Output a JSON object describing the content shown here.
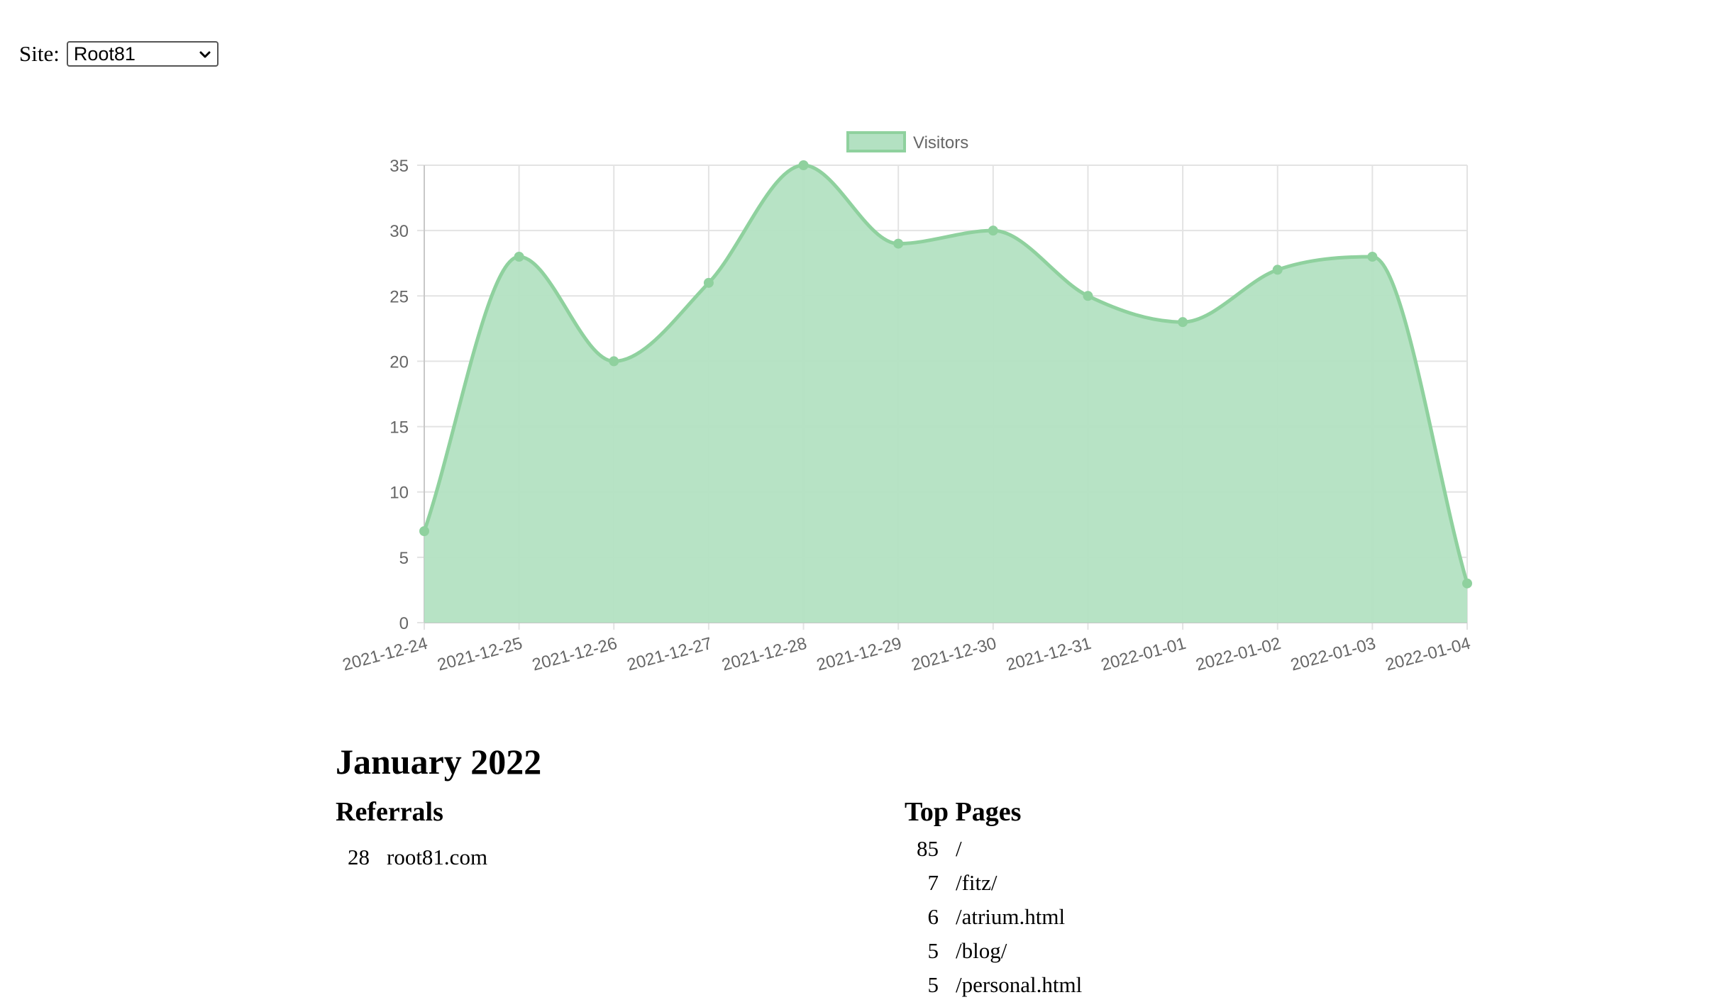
{
  "site": {
    "label": "Site:",
    "selected": "Root81"
  },
  "chart_data": {
    "type": "area",
    "legend": [
      "Visitors"
    ],
    "legend_position": "top-center",
    "x": [
      "2021-12-24",
      "2021-12-25",
      "2021-12-26",
      "2021-12-27",
      "2021-12-28",
      "2021-12-29",
      "2021-12-30",
      "2021-12-31",
      "2022-01-01",
      "2022-01-02",
      "2022-01-03",
      "2022-01-04"
    ],
    "series": [
      {
        "name": "Visitors",
        "values": [
          7,
          28,
          20,
          26,
          35,
          29,
          30,
          25,
          23,
          27,
          28,
          3
        ],
        "color": "#8fd19e"
      }
    ],
    "yticks": [
      "0",
      "5",
      "10",
      "15",
      "20",
      "25",
      "30",
      "35"
    ],
    "ylim": [
      0,
      35
    ],
    "grid": true,
    "fill_color": "#b3e1c2",
    "line_color": "#8fd19e"
  },
  "report": {
    "month": "January 2022",
    "referrals": {
      "title": "Referrals",
      "items": [
        {
          "count": "28",
          "label": "root81.com"
        }
      ]
    },
    "top_pages": {
      "title": "Top Pages",
      "items": [
        {
          "count": "85",
          "label": "/"
        },
        {
          "count": "7",
          "label": "/fitz/"
        },
        {
          "count": "6",
          "label": "/atrium.html"
        },
        {
          "count": "5",
          "label": "/blog/"
        },
        {
          "count": "5",
          "label": "/personal.html"
        }
      ]
    }
  }
}
